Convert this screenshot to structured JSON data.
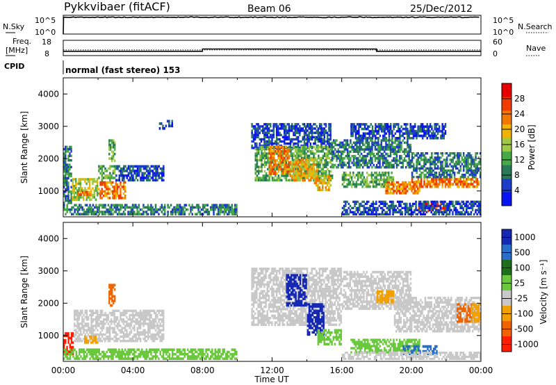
{
  "header": {
    "station": "Pykkvibaer (fitACF)",
    "beam": "Beam 06",
    "date": "25/Dec/2012"
  },
  "panels": {
    "nsky_label": "N.Sky",
    "nsky_ticks": [
      "10^5",
      "10^0"
    ],
    "nsearch_label": "N.Search",
    "nsearch_ticks": [
      "10^5",
      "10^0"
    ],
    "freq_label_1": "Freq.",
    "freq_label_2": "[MHz]",
    "freq_ticks": [
      "18",
      "8"
    ],
    "nave_label": "Nave",
    "nave_ticks": [
      "60",
      "0"
    ],
    "cpid_label": "CPID",
    "cpid_text": "normal (fast stereo) 153"
  },
  "colors": {
    "power": [
      "#0a14f0",
      "#1e3cc8",
      "#2a7a5a",
      "#46a846",
      "#a0c846",
      "#f0b400",
      "#f07800",
      "#f03c00",
      "#e60000"
    ],
    "velocity": [
      "#1428b4",
      "#286ec8",
      "#1e6e1e",
      "#6ac83c",
      "#c8c8c8",
      "#c8c8c8",
      "#f0a000",
      "#f06400",
      "#ff1e00"
    ]
  },
  "chart_data": [
    {
      "type": "heatmap",
      "name": "power",
      "xlabel": "",
      "ylabel": "Slant Range [km]",
      "yticks": [
        "1000",
        "2000",
        "3000",
        "4000"
      ],
      "ylim": [
        200,
        4500
      ],
      "colorbar_label": "Power [dB]",
      "colorbar_ticks": [
        "4",
        "8",
        "12",
        "16",
        "20",
        "24",
        "28"
      ],
      "colorbar_range": [
        0,
        32
      ],
      "regions": [
        {
          "t0": 0.0,
          "t1": 0.5,
          "r0": 600,
          "r1": 2400,
          "v": 10
        },
        {
          "t0": 0.5,
          "t1": 2.0,
          "r0": 700,
          "r1": 1400,
          "v": 18
        },
        {
          "t0": 0.8,
          "t1": 1.6,
          "r0": 850,
          "r1": 1000,
          "v": 26
        },
        {
          "t0": 2.0,
          "t1": 3.0,
          "r0": 1300,
          "r1": 1800,
          "v": 12
        },
        {
          "t0": 2.0,
          "t1": 3.6,
          "r0": 750,
          "r1": 1300,
          "v": 24
        },
        {
          "t0": 3.0,
          "t1": 5.8,
          "r0": 1300,
          "r1": 1800,
          "v": 7
        },
        {
          "t0": 2.6,
          "t1": 3.0,
          "r0": 1900,
          "r1": 2600,
          "v": 14
        },
        {
          "t0": 5.5,
          "t1": 6.3,
          "r0": 2900,
          "r1": 3200,
          "v": 6
        },
        {
          "t0": 0.0,
          "t1": 10.0,
          "r0": 250,
          "r1": 600,
          "v": 8
        },
        {
          "t0": 10.8,
          "t1": 15.4,
          "r0": 2300,
          "r1": 3100,
          "v": 7
        },
        {
          "t0": 11.0,
          "t1": 15.5,
          "r0": 1300,
          "r1": 2400,
          "v": 12
        },
        {
          "t0": 11.8,
          "t1": 13.0,
          "r0": 1500,
          "r1": 2400,
          "v": 26
        },
        {
          "t0": 13.0,
          "t1": 14.6,
          "r0": 1300,
          "r1": 2000,
          "v": 22
        },
        {
          "t0": 14.4,
          "t1": 15.4,
          "r0": 1000,
          "r1": 1500,
          "v": 20
        },
        {
          "t0": 15.4,
          "t1": 20.0,
          "r0": 1700,
          "r1": 2600,
          "v": 10
        },
        {
          "t0": 16.0,
          "t1": 19.0,
          "r0": 1100,
          "r1": 1600,
          "v": 14
        },
        {
          "t0": 18.5,
          "t1": 20.5,
          "r0": 900,
          "r1": 1300,
          "v": 24
        },
        {
          "t0": 20.0,
          "t1": 24.0,
          "r0": 1100,
          "r1": 1400,
          "v": 26
        },
        {
          "t0": 20.0,
          "t1": 24.0,
          "r0": 1400,
          "r1": 2200,
          "v": 10
        },
        {
          "t0": 20.4,
          "t1": 22.0,
          "r0": 350,
          "r1": 650,
          "v": 28
        },
        {
          "t0": 16.0,
          "t1": 24.0,
          "r0": 250,
          "r1": 700,
          "v": 6
        },
        {
          "t0": 16.5,
          "t1": 22.0,
          "r0": 2600,
          "r1": 3100,
          "v": 7
        }
      ]
    },
    {
      "type": "heatmap",
      "name": "velocity",
      "xlabel": "Time UT",
      "xticks": [
        "00:00",
        "04:00",
        "08:00",
        "12:00",
        "16:00",
        "20:00",
        "00:00"
      ],
      "xlim": [
        0,
        24
      ],
      "ylabel": "Slant Range [km]",
      "yticks": [
        "1000",
        "2000",
        "3000",
        "4000"
      ],
      "ylim": [
        200,
        4500
      ],
      "colorbar_label": "Velocity [m s⁻¹]",
      "colorbar_ticks": [
        "1000",
        "500",
        "100",
        "25",
        "-25",
        "-100",
        "-500",
        "-1000"
      ],
      "regions": [
        {
          "t0": 0.0,
          "t1": 0.6,
          "r0": 400,
          "r1": 1100,
          "v": 8
        },
        {
          "t0": 0.6,
          "t1": 5.8,
          "r0": 800,
          "r1": 1800,
          "v": 4
        },
        {
          "t0": 1.2,
          "t1": 2.0,
          "r0": 750,
          "r1": 1000,
          "v": 6
        },
        {
          "t0": 2.6,
          "t1": 3.0,
          "r0": 1900,
          "r1": 2600,
          "v": 7
        },
        {
          "t0": 0.0,
          "t1": 10.0,
          "r0": 250,
          "r1": 600,
          "v": 3
        },
        {
          "t0": 10.8,
          "t1": 16.0,
          "r0": 1300,
          "r1": 3100,
          "v": 4
        },
        {
          "t0": 12.8,
          "t1": 14.0,
          "r0": 1900,
          "r1": 2900,
          "v": 0
        },
        {
          "t0": 14.0,
          "t1": 15.0,
          "r0": 1000,
          "r1": 2000,
          "v": 0
        },
        {
          "t0": 14.6,
          "t1": 16.0,
          "r0": 700,
          "r1": 1200,
          "v": 3
        },
        {
          "t0": 16.0,
          "t1": 20.0,
          "r0": 1800,
          "r1": 3000,
          "v": 4
        },
        {
          "t0": 16.5,
          "t1": 20.5,
          "r0": 450,
          "r1": 900,
          "v": 3
        },
        {
          "t0": 19.5,
          "t1": 21.5,
          "r0": 400,
          "r1": 700,
          "v": 1
        },
        {
          "t0": 18.0,
          "t1": 19.0,
          "r0": 2000,
          "r1": 2400,
          "v": 6
        },
        {
          "t0": 19.0,
          "t1": 24.0,
          "r0": 1100,
          "r1": 2200,
          "v": 4
        },
        {
          "t0": 22.6,
          "t1": 23.5,
          "r0": 1400,
          "r1": 2000,
          "v": 7
        },
        {
          "t0": 23.4,
          "t1": 24.0,
          "r0": 1400,
          "r1": 2000,
          "v": 6
        },
        {
          "t0": 16.0,
          "t1": 24.0,
          "r0": 250,
          "r1": 500,
          "v": 4
        }
      ]
    }
  ],
  "series": {
    "nsky_level": 30000,
    "freq_segments": [
      {
        "t0": 0.0,
        "t1": 8.0,
        "f": 10.8
      },
      {
        "t0": 8.0,
        "t1": 18.0,
        "f": 12.3
      },
      {
        "t0": 18.0,
        "t1": 24.0,
        "f": 10.8
      }
    ],
    "nave_dotted": 22
  }
}
